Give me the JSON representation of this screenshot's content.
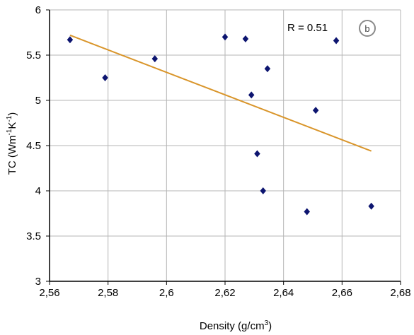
{
  "chart_data": {
    "type": "scatter",
    "x_axis": {
      "title": "Density (g/cm",
      "title_sup": "3",
      "title_end": ")",
      "min": 2.56,
      "max": 2.68,
      "ticks": [
        2.56,
        2.58,
        2.6,
        2.62,
        2.64,
        2.66,
        2.68
      ],
      "tick_labels": [
        "2,56",
        "2,58",
        "2,6",
        "2,62",
        "2,64",
        "2,66",
        "2,68"
      ]
    },
    "y_axis": {
      "title_parts": [
        "TC (Wm",
        "-1",
        "K",
        "-1",
        ")"
      ],
      "min": 3,
      "max": 6,
      "ticks": [
        3,
        3.5,
        4,
        4.5,
        5,
        5.5,
        6
      ],
      "tick_labels": [
        "3",
        "3.5",
        "4",
        "4.5",
        "5",
        "5.5",
        "6"
      ]
    },
    "grid": true,
    "points": [
      {
        "x": 2.567,
        "y": 5.67
      },
      {
        "x": 2.579,
        "y": 5.25
      },
      {
        "x": 2.596,
        "y": 5.46
      },
      {
        "x": 2.62,
        "y": 5.7
      },
      {
        "x": 2.627,
        "y": 5.68
      },
      {
        "x": 2.629,
        "y": 5.06
      },
      {
        "x": 2.631,
        "y": 4.41
      },
      {
        "x": 2.633,
        "y": 4.0
      },
      {
        "x": 2.6345,
        "y": 5.35
      },
      {
        "x": 2.648,
        "y": 3.77
      },
      {
        "x": 2.651,
        "y": 4.89
      },
      {
        "x": 2.658,
        "y": 5.66
      },
      {
        "x": 2.67,
        "y": 3.83
      }
    ],
    "trendline": {
      "x": [
        2.567,
        2.67
      ],
      "y": [
        5.72,
        4.44
      ]
    },
    "annotation": "R = 0.51",
    "panel_label": "b",
    "colors": {
      "points": "#0d1570",
      "trendline": "#d9952a",
      "grid": "#b5b5b5",
      "axis": "#000000"
    }
  }
}
